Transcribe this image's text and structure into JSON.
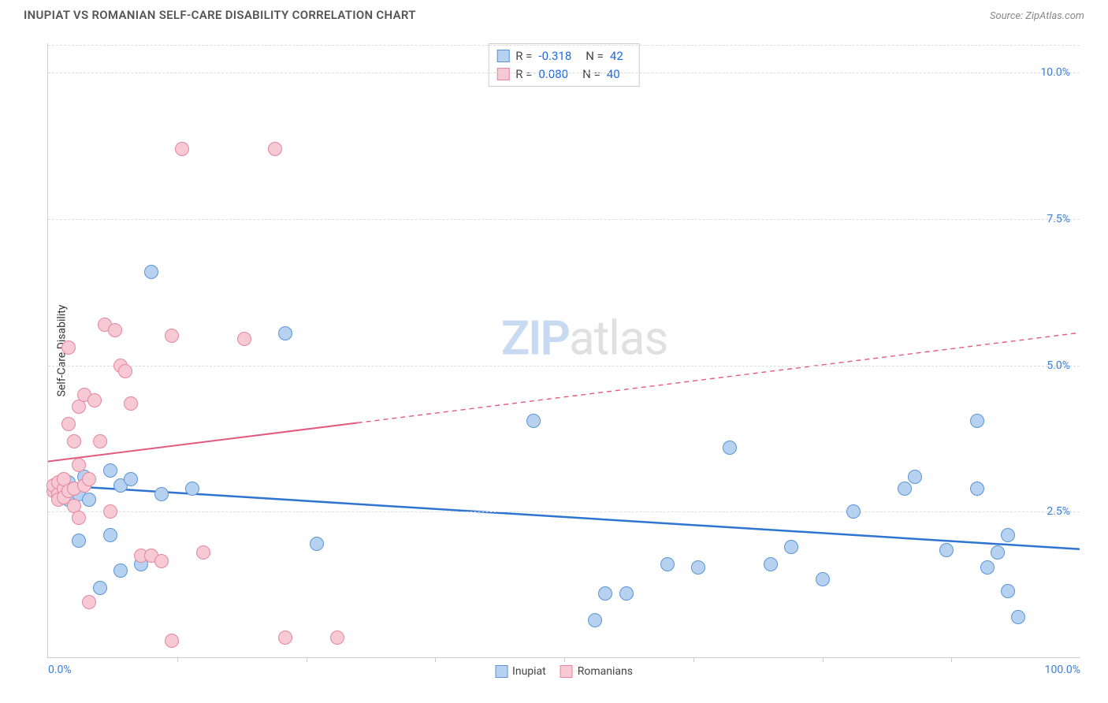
{
  "title": "INUPIAT VS ROMANIAN SELF-CARE DISABILITY CORRELATION CHART",
  "source": "Source: ZipAtlas.com",
  "ylabel": "Self-Care Disability",
  "watermark": {
    "zip": "ZIP",
    "atlas": "atlas"
  },
  "chart": {
    "type": "scatter",
    "xlim": [
      0,
      100
    ],
    "ylim": [
      0,
      10.5
    ],
    "grid_color": "#dddddd",
    "background_color": "#ffffff",
    "axis_color": "#cccccc",
    "tick_color": "#3b7dd8",
    "yticks": [
      {
        "v": 2.5,
        "label": "2.5%"
      },
      {
        "v": 5.0,
        "label": "5.0%"
      },
      {
        "v": 7.5,
        "label": "7.5%"
      },
      {
        "v": 10.0,
        "label": "10.0%"
      }
    ],
    "xticks_minor": [
      12.5,
      25,
      37.5,
      50,
      62.5,
      75,
      87.5
    ],
    "xticks": [
      {
        "v": 0,
        "label": "0.0%",
        "align": "left"
      },
      {
        "v": 100,
        "label": "100.0%",
        "align": "right"
      }
    ],
    "marker_radius": 9,
    "marker_border_width": 1.5,
    "series": [
      {
        "name": "Inupiat",
        "fill": "#b7d2f0",
        "stroke": "#5a94d6",
        "reg": {
          "x1": 0,
          "y1": 2.95,
          "x2": 100,
          "y2": 1.85,
          "color": "#2e74d0",
          "dash_after_x": 100,
          "width": 2.5
        },
        "stats": {
          "R": "-0.318",
          "N": "42"
        },
        "points": [
          [
            1,
            2.95
          ],
          [
            1.5,
            2.8
          ],
          [
            2,
            2.7
          ],
          [
            2,
            3.0
          ],
          [
            2.5,
            2.9
          ],
          [
            3,
            2.8
          ],
          [
            3,
            2.0
          ],
          [
            3.5,
            3.1
          ],
          [
            4,
            2.7
          ],
          [
            5,
            1.2
          ],
          [
            6,
            2.1
          ],
          [
            6,
            3.2
          ],
          [
            7,
            1.5
          ],
          [
            7,
            2.95
          ],
          [
            8,
            3.05
          ],
          [
            9,
            1.6
          ],
          [
            10,
            6.6
          ],
          [
            11,
            2.8
          ],
          [
            14,
            2.9
          ],
          [
            23,
            5.55
          ],
          [
            26,
            1.95
          ],
          [
            47,
            4.05
          ],
          [
            53,
            0.65
          ],
          [
            54,
            1.1
          ],
          [
            56,
            1.1
          ],
          [
            60,
            1.6
          ],
          [
            63,
            1.55
          ],
          [
            66,
            3.6
          ],
          [
            70,
            1.6
          ],
          [
            72,
            1.9
          ],
          [
            75,
            1.35
          ],
          [
            78,
            2.5
          ],
          [
            83,
            2.9
          ],
          [
            84,
            3.1
          ],
          [
            87,
            1.85
          ],
          [
            90,
            4.05
          ],
          [
            90,
            2.9
          ],
          [
            91,
            1.55
          ],
          [
            92,
            1.8
          ],
          [
            93,
            2.1
          ],
          [
            93,
            1.15
          ],
          [
            94,
            0.7
          ]
        ]
      },
      {
        "name": "Romanians",
        "fill": "#f6c9d5",
        "stroke": "#e4869f",
        "reg": {
          "x1": 0,
          "y1": 3.35,
          "x2": 100,
          "y2": 5.55,
          "color": "#e35a7e",
          "dash_after_x": 30,
          "width": 2
        },
        "stats": {
          "R": "0.080",
          "N": "40"
        },
        "points": [
          [
            0.5,
            2.85
          ],
          [
            0.5,
            2.95
          ],
          [
            1,
            2.8
          ],
          [
            1,
            3.0
          ],
          [
            1,
            2.7
          ],
          [
            1.5,
            2.9
          ],
          [
            1.5,
            3.05
          ],
          [
            1.5,
            2.75
          ],
          [
            2,
            2.85
          ],
          [
            2,
            5.3
          ],
          [
            2,
            4.0
          ],
          [
            2.5,
            2.9
          ],
          [
            2.5,
            3.7
          ],
          [
            2.5,
            2.6
          ],
          [
            3,
            4.3
          ],
          [
            3,
            3.3
          ],
          [
            3,
            2.4
          ],
          [
            3.5,
            4.5
          ],
          [
            3.5,
            2.95
          ],
          [
            4,
            3.05
          ],
          [
            4,
            0.95
          ],
          [
            4.5,
            4.4
          ],
          [
            5,
            3.7
          ],
          [
            5.5,
            5.7
          ],
          [
            6,
            2.5
          ],
          [
            6.5,
            5.6
          ],
          [
            7,
            5.0
          ],
          [
            7.5,
            4.9
          ],
          [
            8,
            4.35
          ],
          [
            9,
            1.75
          ],
          [
            10,
            1.75
          ],
          [
            11,
            1.65
          ],
          [
            12,
            5.5
          ],
          [
            12,
            0.3
          ],
          [
            13,
            8.7
          ],
          [
            15,
            1.8
          ],
          [
            19,
            5.45
          ],
          [
            22,
            8.7
          ],
          [
            23,
            0.35
          ],
          [
            28,
            0.35
          ]
        ]
      }
    ]
  },
  "legend": [
    {
      "name": "Inupiat",
      "fill": "#b7d2f0",
      "stroke": "#5a94d6"
    },
    {
      "name": "Romanians",
      "fill": "#f6c9d5",
      "stroke": "#e4869f"
    }
  ]
}
